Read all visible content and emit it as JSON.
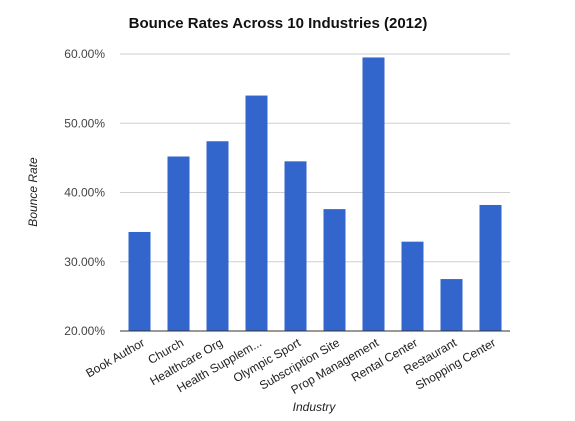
{
  "chart_data": {
    "type": "bar",
    "title": "Bounce Rates Across 10 Industries (2012)",
    "xlabel": "Industry",
    "ylabel": "Bounce Rate",
    "ylim": [
      20,
      60
    ],
    "yticks": [
      20,
      30,
      40,
      50,
      60
    ],
    "ytick_labels": [
      "20.00%",
      "30.00%",
      "40.00%",
      "50.00%",
      "60.00%"
    ],
    "grid": true,
    "legend": "none",
    "bar_color": "#3366cc",
    "categories": [
      "Book Author",
      "Church",
      "Healthcare Org",
      "Health Supplem...",
      "Olympic Sport",
      "Subscription Site",
      "Prop Management",
      "Rental Center",
      "Restaurant",
      "Shopping Center"
    ],
    "values": [
      34.3,
      45.2,
      47.4,
      54.0,
      44.5,
      37.6,
      59.5,
      32.9,
      27.5,
      38.2
    ]
  }
}
